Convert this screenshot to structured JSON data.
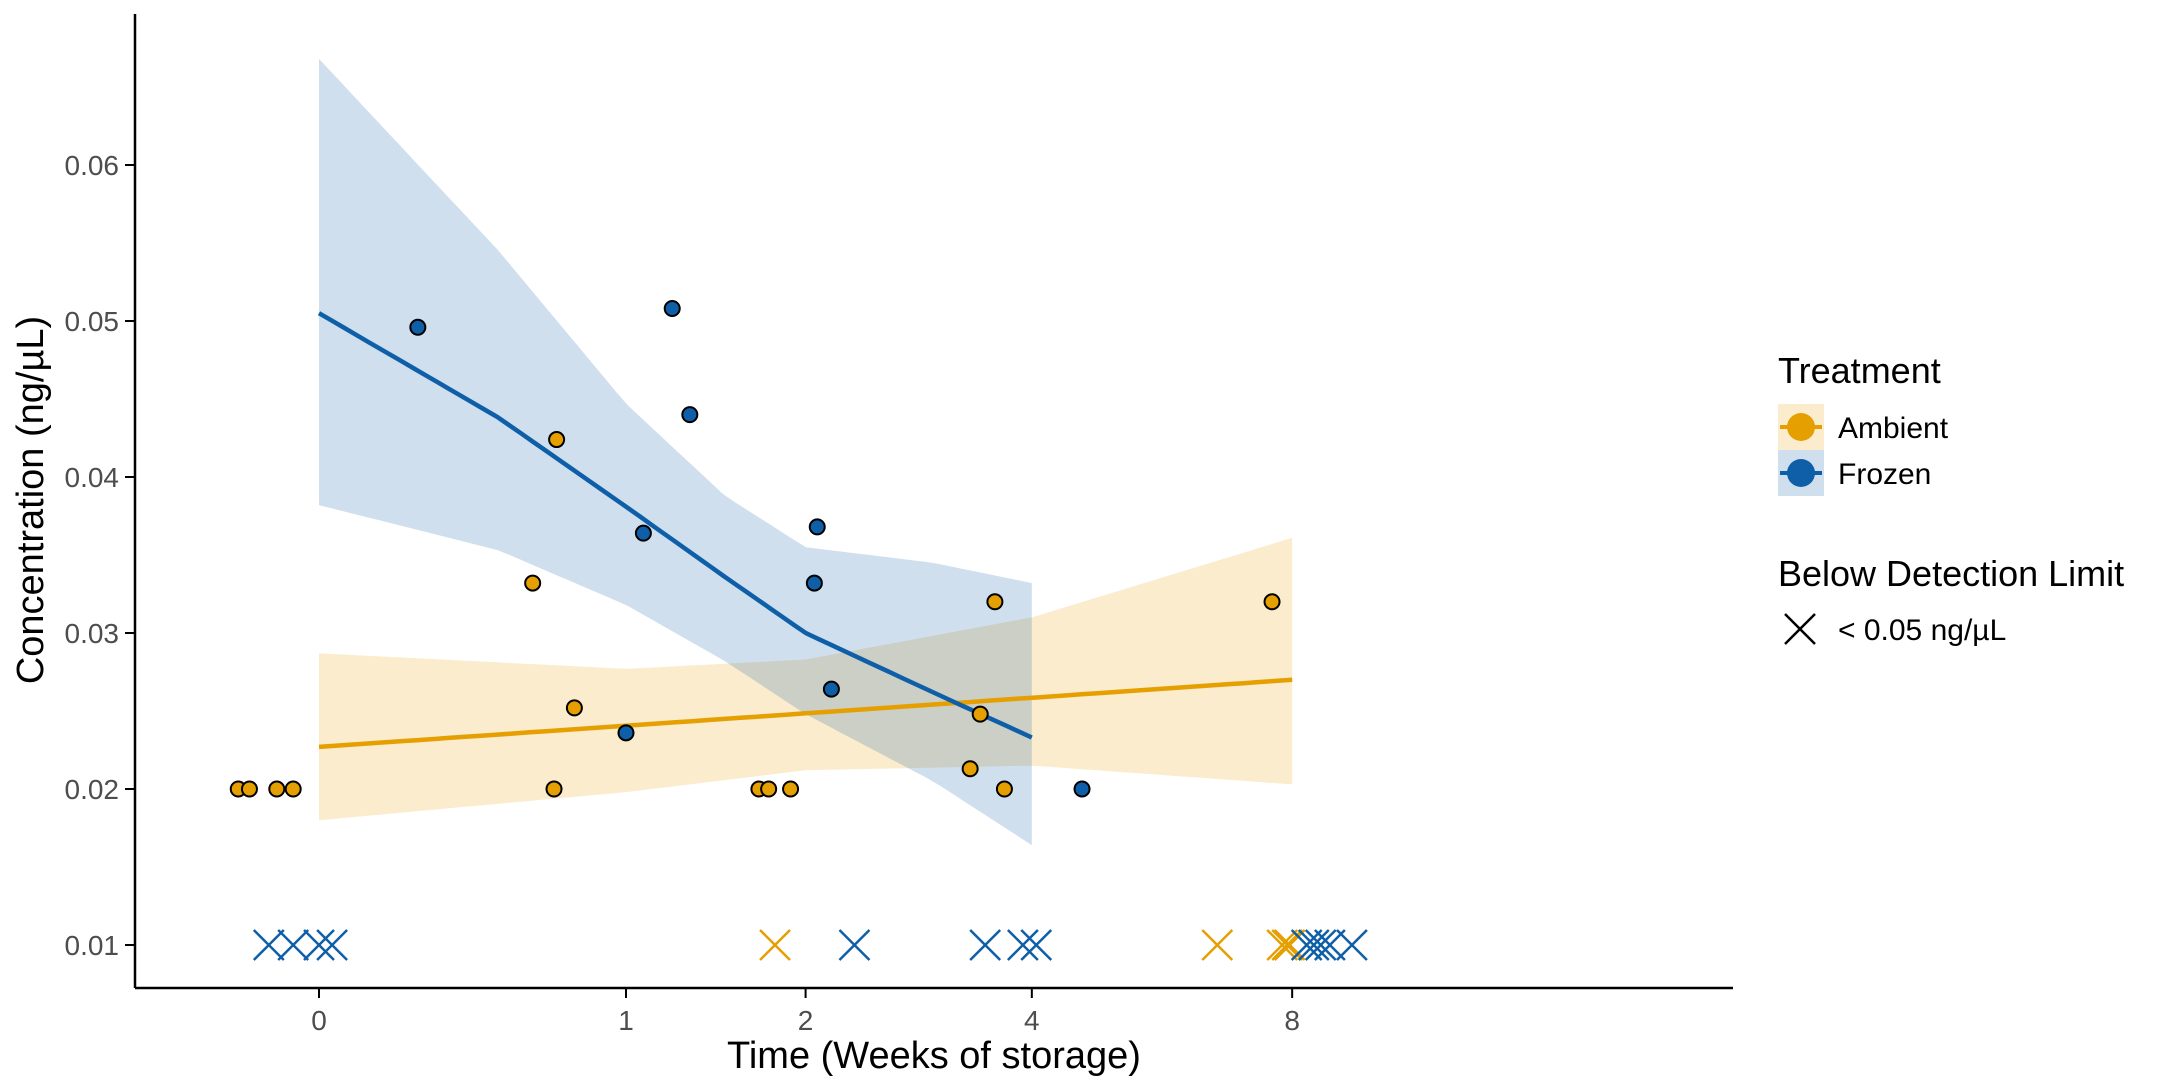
{
  "chart_data": {
    "type": "scatter",
    "title": "",
    "xlabel": "Time (Weeks of storage)",
    "ylabel": "Concentration (ng/µL)",
    "x_scale": "pseudo-log2",
    "x_ticks": [
      0,
      1,
      2,
      4,
      8
    ],
    "x_tick_labels": [
      "0",
      "1",
      "2",
      "4",
      "8"
    ],
    "y_ticks": [
      0.01,
      0.02,
      0.03,
      0.04,
      0.05,
      0.06
    ],
    "y_tick_labels": [
      "0.01",
      "0.02",
      "0.03",
      "0.04",
      "0.05",
      "0.06"
    ],
    "ylim": [
      0.0075,
      0.07
    ],
    "grid": false,
    "legend_position": "right",
    "colors": {
      "Ambient": "#E69F00",
      "Frozen": "#0F5FA8"
    },
    "legend": {
      "treatment_title": "Treatment",
      "treatment_items": [
        "Ambient",
        "Frozen"
      ],
      "bdl_title": "Below Detection Limit",
      "bdl_label": "< 0.05 ng/µL"
    },
    "series": [
      {
        "name": "Ambient",
        "points": [
          [
            -0.2,
            0.02
          ],
          [
            -0.17,
            0.02
          ],
          [
            -0.1,
            0.02
          ],
          [
            -0.06,
            0.02
          ],
          [
            0.62,
            0.0332
          ],
          [
            0.71,
            0.0424
          ],
          [
            0.7,
            0.02
          ],
          [
            0.78,
            0.0252
          ],
          [
            1.7,
            0.02
          ],
          [
            1.76,
            0.02
          ],
          [
            1.9,
            0.02
          ],
          [
            3.35,
            0.0213
          ],
          [
            3.45,
            0.0248
          ],
          [
            3.6,
            0.032
          ],
          [
            3.7,
            0.02
          ],
          [
            7.6,
            0.032
          ]
        ],
        "below_detection_x": [
          1.8,
          6.6,
          7.8,
          7.9,
          7.95
        ],
        "fit": {
          "x": [
            0,
            8
          ],
          "y": [
            0.0227,
            0.027
          ]
        },
        "ci": {
          "x": [
            0,
            1,
            2,
            4,
            8
          ],
          "lower": [
            0.018,
            0.0198,
            0.0212,
            0.0215,
            0.0203
          ],
          "upper": [
            0.0287,
            0.0277,
            0.0283,
            0.031,
            0.0361
          ]
        }
      },
      {
        "name": "Frozen",
        "points": [
          [
            0.25,
            0.0496
          ],
          [
            1.0,
            0.0236
          ],
          [
            1.08,
            0.0364
          ],
          [
            1.22,
            0.0508
          ],
          [
            1.31,
            0.044
          ],
          [
            2.06,
            0.0332
          ],
          [
            2.08,
            0.0368
          ],
          [
            2.18,
            0.0264
          ],
          [
            4.6,
            0.02
          ]
        ],
        "below_detection_x": [
          -0.12,
          -0.06,
          0.0,
          0.03,
          2.35,
          3.5,
          3.9,
          4.05,
          8.3,
          8.45,
          8.6,
          8.8,
          9.3
        ],
        "fit": {
          "x": [
            0,
            0.5,
            1,
            1.5,
            2,
            3,
            4
          ],
          "y": [
            0.0505,
            0.0438,
            0.0381,
            0.0336,
            0.03,
            0.0262,
            0.0233
          ]
        },
        "ci": {
          "x": [
            0,
            0.5,
            1,
            1.5,
            2,
            3,
            4
          ],
          "lower": [
            0.0382,
            0.0353,
            0.0318,
            0.0282,
            0.0248,
            0.0205,
            0.0164
          ],
          "upper": [
            0.0668,
            0.0545,
            0.0447,
            0.0388,
            0.0355,
            0.0345,
            0.0332
          ]
        }
      }
    ]
  }
}
